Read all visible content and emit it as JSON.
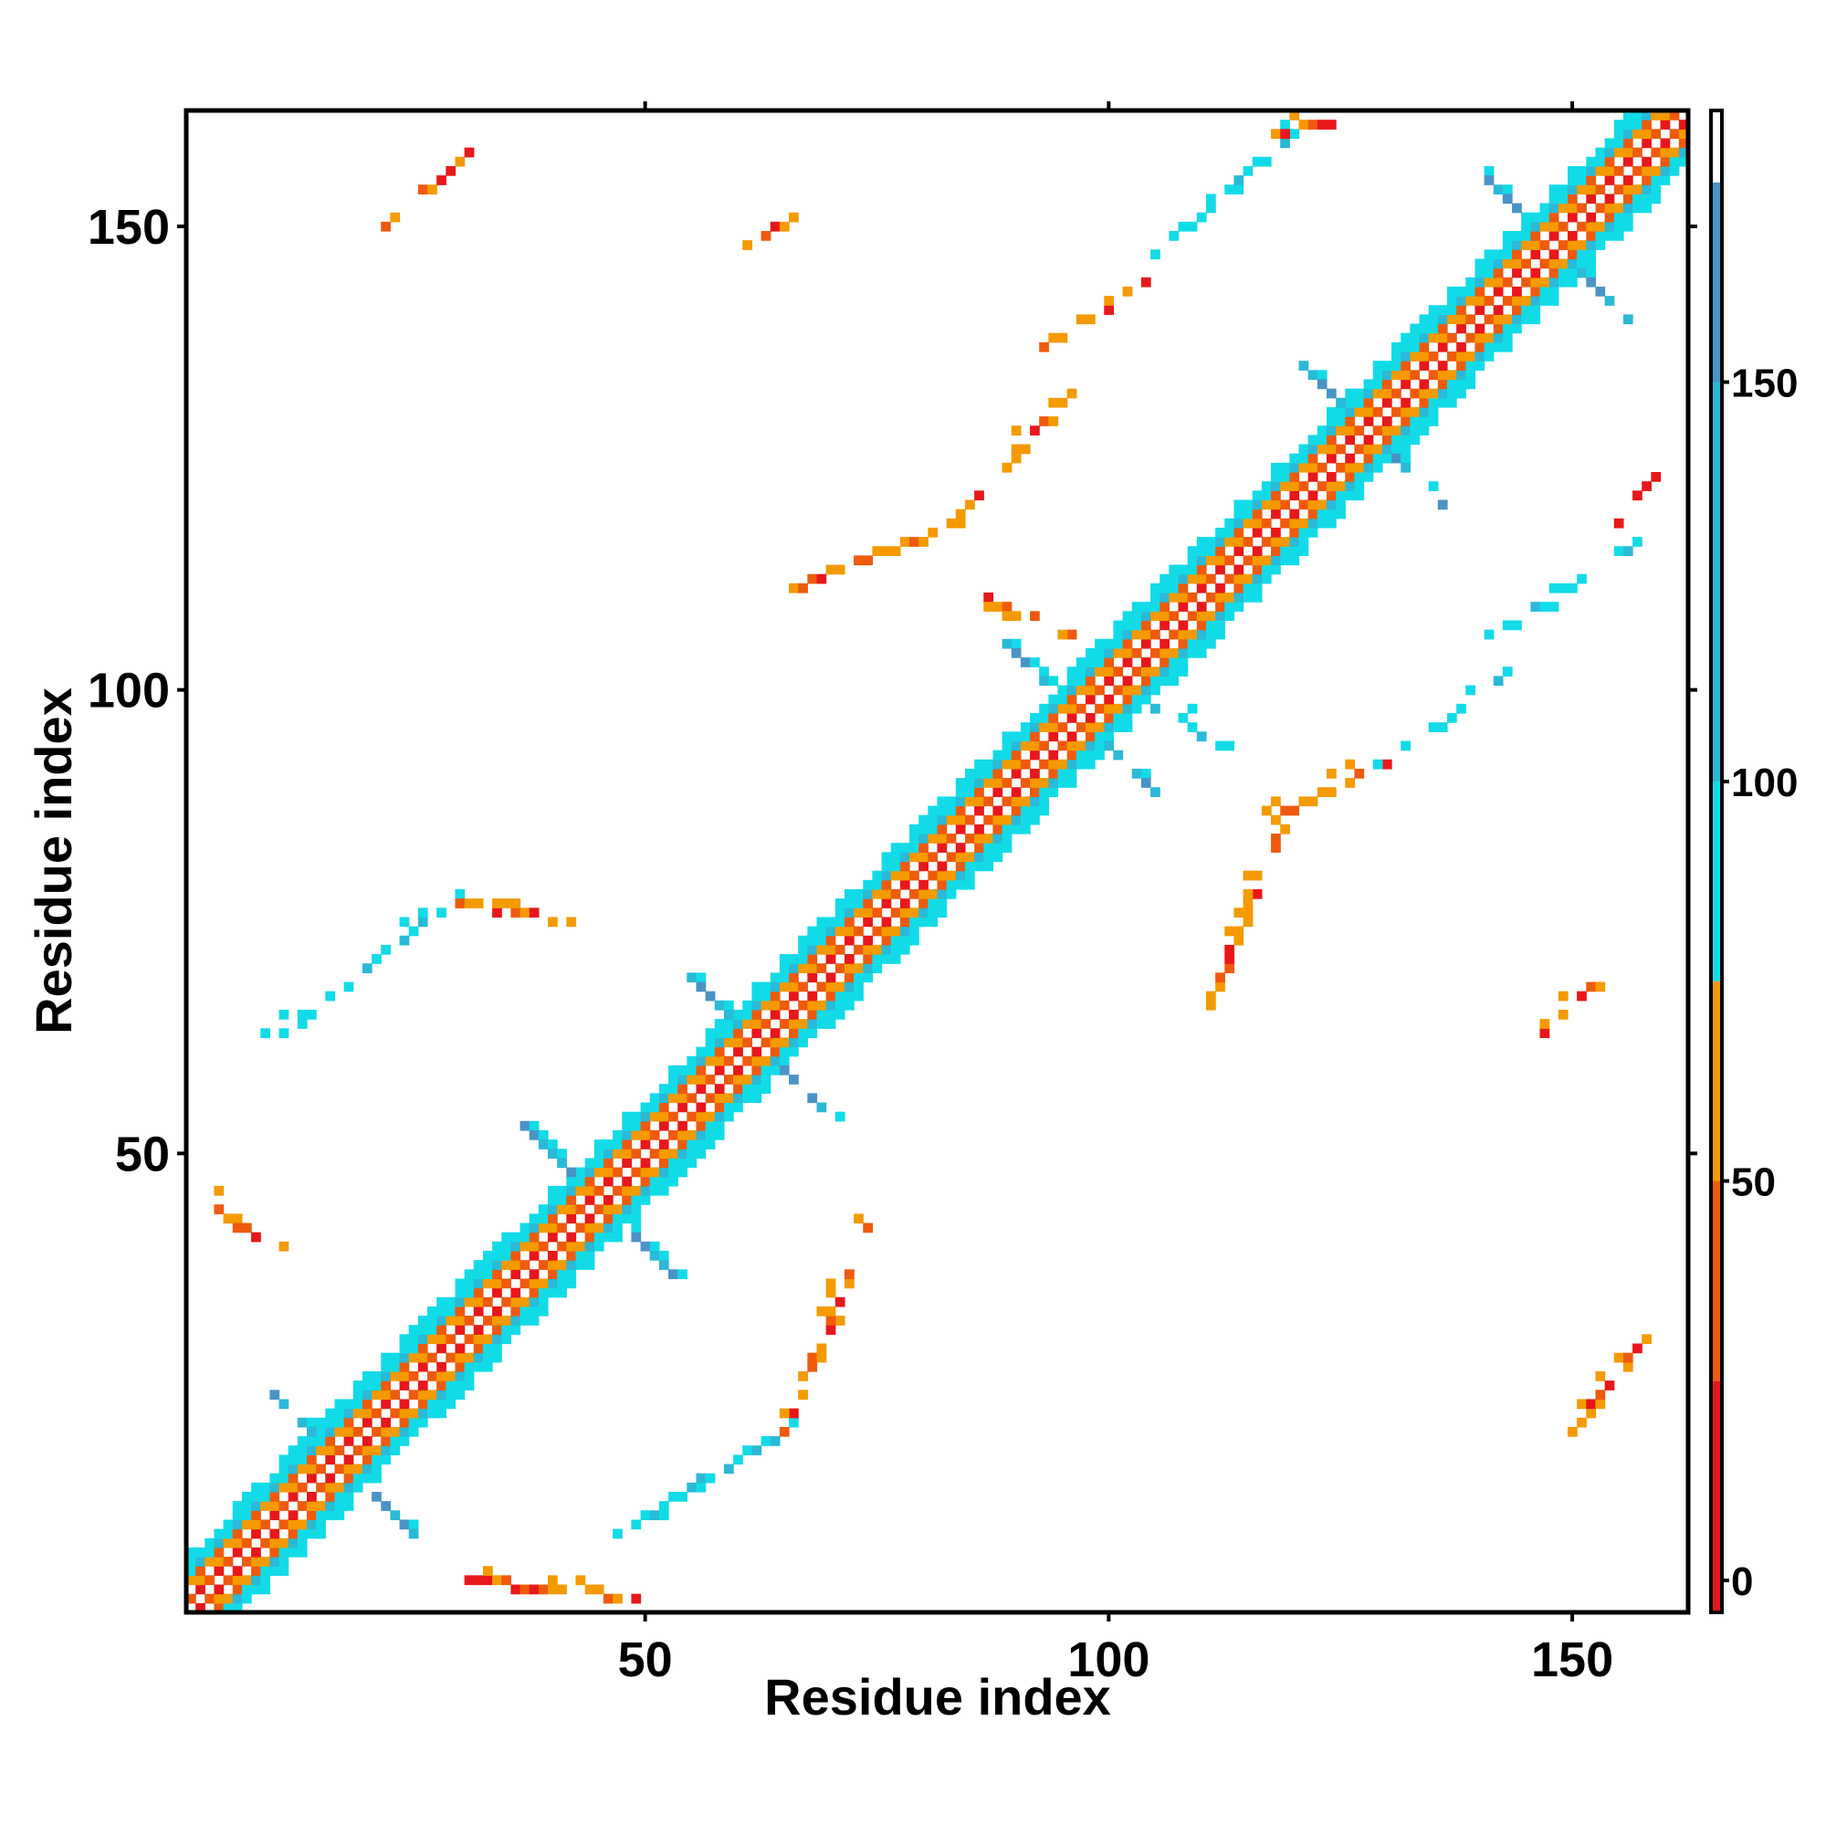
{
  "chart_data": {
    "type": "heatmap",
    "title": "",
    "xlabel": "Residue index",
    "ylabel": "Residue index",
    "xlim": [
      1,
      162
    ],
    "ylim": [
      1,
      162
    ],
    "x_ticks": [
      50,
      100,
      150
    ],
    "y_ticks": [
      50,
      100,
      150
    ],
    "colorbar": {
      "range": [
        -4,
        184
      ],
      "ticks": [
        0,
        50,
        100,
        150
      ],
      "bands": [
        {
          "from": -4,
          "to": 25,
          "color": "#e8171a"
        },
        {
          "from": 25,
          "to": 50,
          "color": "#ef5a0c"
        },
        {
          "from": 50,
          "to": 75,
          "color": "#f59a00"
        },
        {
          "from": 75,
          "to": 100,
          "color": "#12dbe8"
        },
        {
          "from": 100,
          "to": 150,
          "color": "#2ab9d6"
        },
        {
          "from": 150,
          "to": 175,
          "color": "#4a93c6"
        },
        {
          "from": 175,
          "to": 184,
          "color": "#ffffff"
        }
      ]
    },
    "diagonal_band": {
      "from": 1,
      "to": 162,
      "half_width": 6
    },
    "helix_crossings": [
      17,
      45,
      62,
      97,
      128,
      148
    ],
    "off_diagonal_contacts": [
      {
        "x1": 3,
        "y1": 45,
        "x2": 11,
        "y2": 38,
        "level": "orange"
      },
      {
        "x1": 10,
        "y1": 62,
        "x2": 30,
        "y2": 78,
        "level": "cyan"
      },
      {
        "x1": 30,
        "y1": 77,
        "x2": 42,
        "y2": 75,
        "level": "orange"
      },
      {
        "x1": 30,
        "y1": 4,
        "x2": 50,
        "y2": 2,
        "level": "orange"
      },
      {
        "x1": 47,
        "y1": 9,
        "x2": 65,
        "y2": 20,
        "level": "cyan"
      },
      {
        "x1": 65,
        "y1": 20,
        "x2": 74,
        "y2": 42,
        "level": "orange"
      },
      {
        "x1": 22,
        "y1": 150,
        "x2": 31,
        "y2": 158,
        "level": "orange"
      },
      {
        "x1": 62,
        "y1": 148,
        "x2": 67,
        "y2": 152,
        "level": "orange"
      },
      {
        "x1": 66,
        "y1": 111,
        "x2": 84,
        "y2": 118,
        "level": "orange"
      },
      {
        "x1": 83,
        "y1": 118,
        "x2": 96,
        "y2": 132,
        "level": "orange"
      },
      {
        "x1": 93,
        "y1": 137,
        "x2": 104,
        "y2": 144,
        "level": "orange"
      },
      {
        "x1": 105,
        "y1": 147,
        "x2": 120,
        "y2": 160,
        "level": "cyan"
      },
      {
        "x1": 118,
        "y1": 160,
        "x2": 124,
        "y2": 161,
        "level": "orange"
      },
      {
        "x1": 86,
        "y1": 110,
        "x2": 96,
        "y2": 106,
        "level": "orange"
      },
      {
        "x1": 104,
        "y1": 99,
        "x2": 112,
        "y2": 94,
        "level": "cyan"
      },
      {
        "x1": 111,
        "y1": 66,
        "x2": 118,
        "y2": 84,
        "level": "orange"
      },
      {
        "x1": 118,
        "y1": 86,
        "x2": 130,
        "y2": 92,
        "level": "orange"
      },
      {
        "x1": 130,
        "y1": 92,
        "x2": 143,
        "y2": 102,
        "level": "cyan"
      },
      {
        "x1": 142,
        "y1": 106,
        "x2": 157,
        "y2": 116,
        "level": "cyan"
      },
      {
        "x1": 155,
        "y1": 118,
        "x2": 159,
        "y2": 123,
        "level": "red"
      },
      {
        "x1": 147,
        "y1": 63,
        "x2": 152,
        "y2": 68,
        "level": "orange"
      },
      {
        "x1": 150,
        "y1": 20,
        "x2": 158,
        "y2": 30,
        "level": "orange"
      }
    ]
  }
}
